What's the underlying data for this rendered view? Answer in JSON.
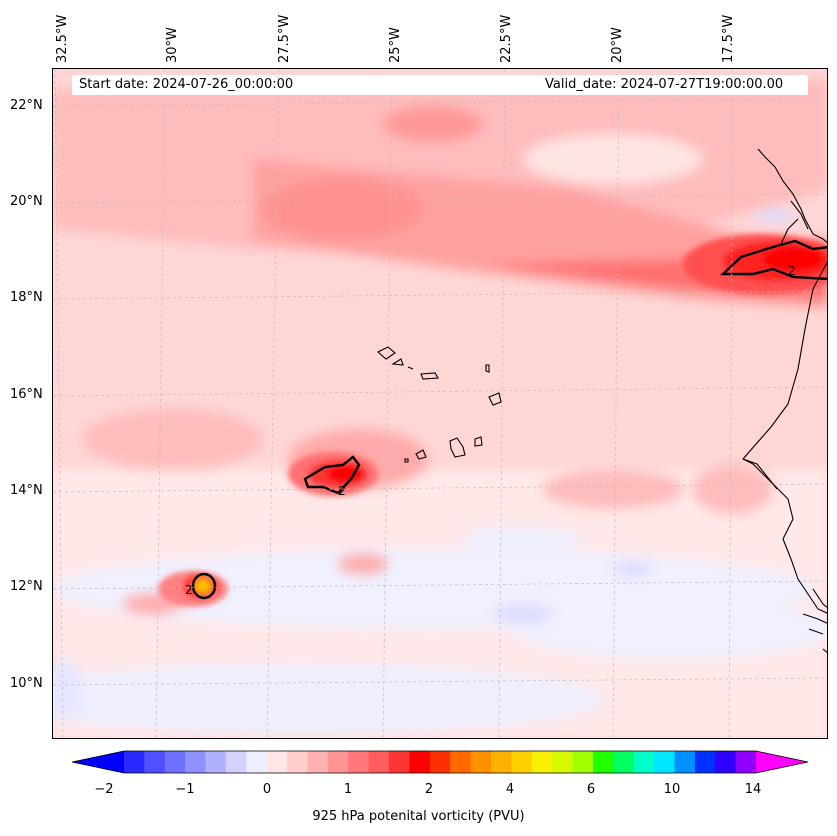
{
  "header": {
    "start_date": "Start date: 2024-07-26_00:00:00",
    "valid_date": "Valid_date: 2024-07-27T19:00:00.00"
  },
  "axes": {
    "lat_ticks": [
      "22°N",
      "20°N",
      "18°N",
      "16°N",
      "14°N",
      "12°N",
      "10°N"
    ],
    "lon_ticks": [
      "32.5°W",
      "30°W",
      "27.5°W",
      "25°W",
      "22.5°W",
      "20°W",
      "17.5°W"
    ]
  },
  "colorbar": {
    "title": "925 hPa potenital vorticity (PVU)",
    "tick_labels": [
      "−2",
      "−1",
      "0",
      "1",
      "2",
      "4",
      "6",
      "10",
      "14"
    ],
    "colors": [
      "#0000ff",
      "#2a2aff",
      "#5050ff",
      "#7070ff",
      "#9090ff",
      "#b0b0ff",
      "#d2d2ff",
      "#eeeeff",
      "#ffe6e6",
      "#ffcccc",
      "#ffb0b0",
      "#ff9494",
      "#ff7878",
      "#ff5c5c",
      "#ff3535",
      "#ff0000",
      "#ff3000",
      "#ff6a00",
      "#ff9000",
      "#ffb000",
      "#ffd000",
      "#f8f000",
      "#d8f800",
      "#a0ff00",
      "#20ff00",
      "#00ff60",
      "#00ffc8",
      "#00e8ff",
      "#0090ff",
      "#0030ff",
      "#3000ff",
      "#9000ff",
      "#ff00ff"
    ],
    "extend": "both"
  },
  "contour_label": "2",
  "colors": {
    "background_pv": "#ffd6d6",
    "land_outline": "#000000"
  }
}
